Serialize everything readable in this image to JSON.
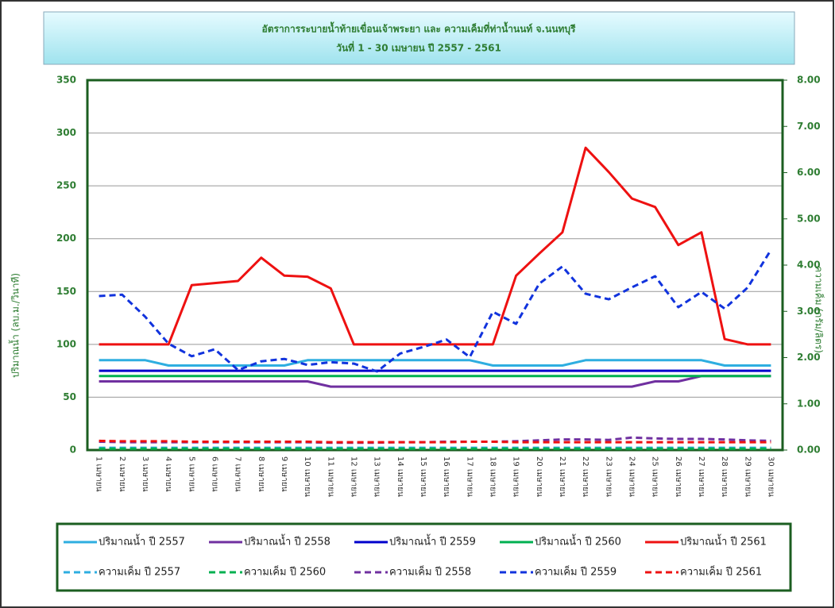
{
  "chart_data": {
    "type": "line",
    "title": "อัตราการระบายน้ำท้ายเขื่อนเจ้าพระยา และ ความเค็มที่ท่าน้ำนนท์ จ.นนทบุรี",
    "subtitle": "วันที่ 1 - 30 เมษายน  ปี 2557 - 2561",
    "y_label": "ปริมาณน้ำ (ลบ.ม./วินาที)",
    "y2_label": "ความเค็ม (กรัม/ลิตร)",
    "categories": [
      "1 เมษายน",
      "2 เมษายน",
      "3 เมษายน",
      "4 เมษายน",
      "5 เมษายน",
      "6 เมษายน",
      "7 เมษายน",
      "8 เมษายน",
      "9 เมษายน",
      "10 เมษายน",
      "11 เมษายน",
      "12 เมษายน",
      "13 เมษายน",
      "14 เมษายน",
      "15 เมษายน",
      "16 เมษายน",
      "17 เมษายน",
      "18 เมษายน",
      "19 เมษายน",
      "20 เมษายน",
      "21 เมษายน",
      "22 เมษายน",
      "23 เมษายน",
      "24 เมษายน",
      "25 เมษายน",
      "26 เมษายน",
      "27 เมษายน",
      "28 เมษายน",
      "29 เมษายน",
      "30 เมษายน"
    ],
    "ylim": [
      0,
      350
    ],
    "yticks": [
      0,
      50,
      100,
      150,
      200,
      250,
      300,
      350
    ],
    "y2lim": [
      0,
      8
    ],
    "y2ticks": [
      {
        "value": 0,
        "label": "0.00"
      },
      {
        "value": 1,
        "label": "1.00"
      },
      {
        "value": 2,
        "label": "2.00"
      },
      {
        "value": 3,
        "label": "3.00"
      },
      {
        "value": 4,
        "label": "4.00"
      },
      {
        "value": 5,
        "label": "5.00"
      },
      {
        "value": 6,
        "label": "6.00"
      },
      {
        "value": 7,
        "label": "7.00"
      },
      {
        "value": 8,
        "label": "8.00"
      }
    ],
    "grid": true,
    "series": [
      {
        "name": "ปริมาณน้ำ ปี 2557",
        "color": "#2eaee0",
        "dash": false,
        "values": [
          85,
          85,
          85,
          80,
          80,
          80,
          80,
          80,
          80,
          85,
          85,
          85,
          85,
          85,
          85,
          85,
          85,
          80,
          80,
          80,
          80,
          85,
          85,
          85,
          85,
          85,
          85,
          80,
          80,
          80
        ]
      },
      {
        "name": "ปริมาณน้ำ ปี 2558",
        "color": "#7030a0",
        "dash": false,
        "values": [
          65,
          65,
          65,
          65,
          65,
          65,
          65,
          65,
          65,
          65,
          60,
          60,
          60,
          60,
          60,
          60,
          60,
          60,
          60,
          60,
          60,
          60,
          60,
          60,
          65,
          65,
          70,
          70,
          70,
          70
        ]
      },
      {
        "name": "ปริมาณน้ำ ปี 2559",
        "color": "#0000cc",
        "dash": false,
        "values": [
          75,
          75,
          75,
          75,
          75,
          75,
          75,
          75,
          75,
          75,
          75,
          75,
          75,
          75,
          75,
          75,
          75,
          75,
          75,
          75,
          75,
          75,
          75,
          75,
          75,
          75,
          75,
          75,
          75,
          75
        ]
      },
      {
        "name": "ปริมาณน้ำ ปี 2560",
        "color": "#00b050",
        "dash": false,
        "values": [
          70,
          70,
          70,
          70,
          70,
          70,
          70,
          70,
          70,
          70,
          70,
          70,
          70,
          70,
          70,
          70,
          70,
          70,
          70,
          70,
          70,
          70,
          70,
          70,
          70,
          70,
          70,
          70,
          70,
          70
        ]
      },
      {
        "name": "ปริมาณน้ำ ปี 2561",
        "color": "#ee1111",
        "dash": false,
        "values": [
          100,
          100,
          100,
          100,
          156,
          158,
          160,
          182,
          165,
          164,
          153,
          100,
          100,
          100,
          100,
          100,
          100,
          100,
          165,
          186,
          206,
          286,
          263,
          238,
          230,
          194,
          206,
          105,
          100,
          100
        ]
      },
      {
        "name": "ความเค็ม ปี 2557",
        "color": "#2eaee0",
        "dash": true,
        "axis": "y2",
        "values": [
          0.05,
          0.05,
          0.05,
          0.05,
          0.05,
          0.05,
          0.05,
          0.05,
          0.05,
          0.05,
          0.05,
          0.05,
          0.05,
          0.05,
          0.05,
          0.05,
          0.05,
          0.05,
          0.05,
          0.05,
          0.05,
          0.05,
          0.05,
          0.05,
          0.05,
          0.05,
          0.05,
          0.05,
          0.05,
          0.05
        ]
      },
      {
        "name": "ความเค็ม ปี 2560",
        "color": "#00b050",
        "dash": true,
        "axis": "y2",
        "values": [
          0.03,
          0.03,
          0.03,
          0.03,
          0.03,
          0.03,
          0.03,
          0.03,
          0.03,
          0.03,
          0.03,
          0.03,
          0.03,
          0.03,
          0.03,
          0.03,
          0.03,
          0.03,
          0.03,
          0.03,
          0.03,
          0.03,
          0.03,
          0.03,
          0.03,
          0.03,
          0.03,
          0.03,
          0.03,
          0.03
        ]
      },
      {
        "name": "ความเค็ม ปี 2558",
        "color": "#7030a0",
        "dash": true,
        "axis": "y2",
        "values": [
          0.18,
          0.17,
          0.17,
          0.17,
          0.17,
          0.17,
          0.17,
          0.17,
          0.17,
          0.17,
          0.16,
          0.16,
          0.16,
          0.17,
          0.17,
          0.18,
          0.18,
          0.18,
          0.19,
          0.21,
          0.23,
          0.23,
          0.22,
          0.27,
          0.25,
          0.24,
          0.24,
          0.23,
          0.21,
          0.2
        ]
      },
      {
        "name": "ความเค็ม ปี 2559",
        "color": "#1133dd",
        "dash": true,
        "axis": "y2",
        "values": [
          3.33,
          3.36,
          2.88,
          2.3,
          2.03,
          2.18,
          1.73,
          1.92,
          1.97,
          1.84,
          1.9,
          1.87,
          1.7,
          2.09,
          2.23,
          2.39,
          2.01,
          2.99,
          2.73,
          3.6,
          3.97,
          3.38,
          3.26,
          3.52,
          3.76,
          3.09,
          3.42,
          3.06,
          3.52,
          4.33
        ]
      },
      {
        "name": "ความเค็ม ปี 2561",
        "color": "#ee1111",
        "dash": true,
        "axis": "y2",
        "values": [
          0.2,
          0.19,
          0.19,
          0.19,
          0.18,
          0.18,
          0.18,
          0.18,
          0.18,
          0.18,
          0.17,
          0.17,
          0.17,
          0.17,
          0.17,
          0.17,
          0.18,
          0.18,
          0.17,
          0.17,
          0.17,
          0.17,
          0.17,
          0.17,
          0.17,
          0.17,
          0.17,
          0.17,
          0.17,
          0.17
        ]
      }
    ]
  }
}
